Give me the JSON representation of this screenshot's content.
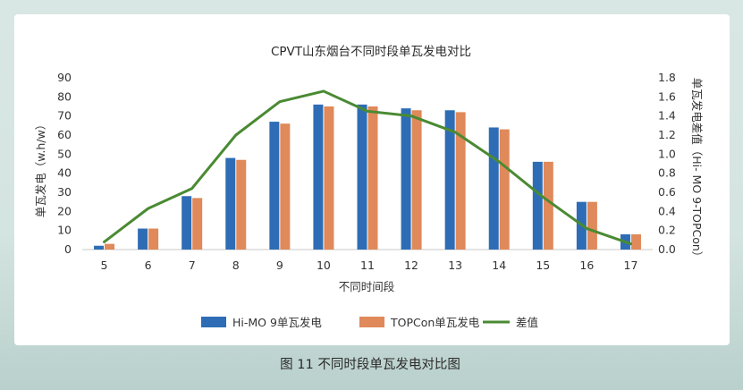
{
  "chart_data": {
    "type": "bar",
    "title": "CPVT山东烟台不同时段单瓦发电对比",
    "xlabel": "不同时间段",
    "ylabel": "单瓦发电（w.h/w）",
    "y2label": "单瓦发电差值（Hi- MO 9-TOPCon）",
    "categories": [
      "5",
      "6",
      "7",
      "8",
      "9",
      "10",
      "11",
      "12",
      "13",
      "14",
      "15",
      "16",
      "17"
    ],
    "ylim": [
      0,
      90
    ],
    "y_ticks": [
      0,
      10,
      20,
      30,
      40,
      50,
      60,
      70,
      80,
      90
    ],
    "y2lim": [
      0,
      1.8
    ],
    "y2_ticks": [
      "0.0",
      "0.2",
      "0.4",
      "0.6",
      "0.8",
      "1.0",
      "1.2",
      "1.4",
      "1.6",
      "1.8"
    ],
    "grid": false,
    "legend_position": "bottom",
    "series": [
      {
        "name": "Hi-MO 9单瓦发电",
        "type": "bar",
        "axis": "left",
        "color": "#2e6db5",
        "values": [
          2,
          11,
          28,
          48,
          67,
          76,
          76,
          74,
          73,
          64,
          46,
          25,
          8
        ]
      },
      {
        "name": "TOPCon单瓦发电",
        "type": "bar",
        "axis": "left",
        "color": "#e0895a",
        "values": [
          3,
          11,
          27,
          47,
          66,
          75,
          75,
          73,
          72,
          63,
          46,
          25,
          8
        ]
      },
      {
        "name": "差值",
        "type": "line",
        "axis": "right",
        "color": "#4a8a33",
        "values": [
          0.08,
          0.43,
          0.64,
          1.2,
          1.55,
          1.66,
          1.45,
          1.4,
          1.23,
          0.92,
          0.55,
          0.22,
          0.06
        ]
      }
    ]
  },
  "caption": "图 11 不同时段单瓦发电对比图"
}
